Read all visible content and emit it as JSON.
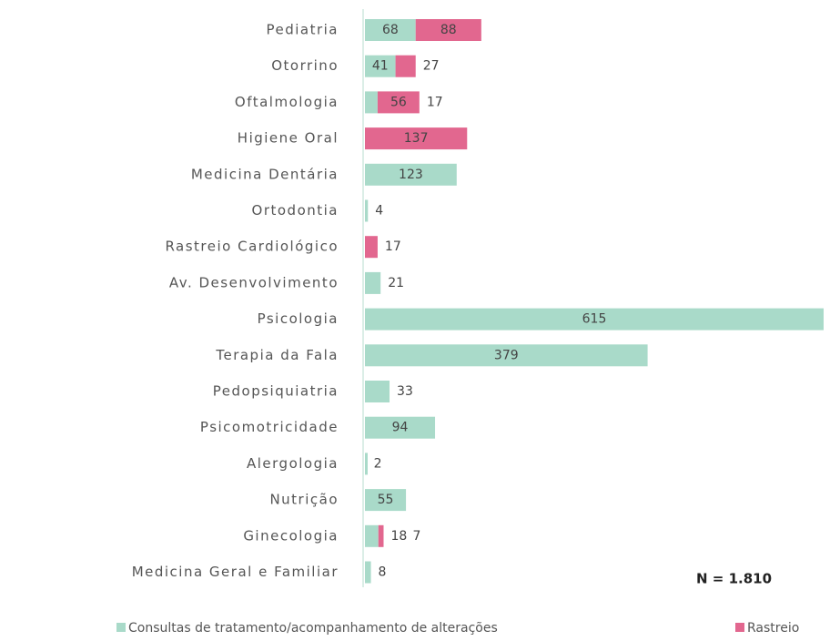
{
  "chart_data": {
    "type": "stacked_barh",
    "categories": [
      "Pediatria",
      "Otorrino",
      "Oftalmologia",
      "Higiene Oral",
      "Medicina Dentária",
      "Ortodontia",
      "Rastreio Cardiológico",
      "Av. Desenvolvimento",
      "Psicologia",
      "Terapia da Fala",
      "Pedopsiquiatria",
      "Psicomotricidade",
      "Alergologia",
      "Nutrição",
      "Ginecologia",
      "Medicina Geral e Familiar"
    ],
    "series": [
      {
        "name": "Consultas de tratamento/acompanhamento de alterações",
        "color": "#a9dac9",
        "values": [
          68,
          41,
          17,
          null,
          123,
          4,
          null,
          21,
          615,
          379,
          33,
          94,
          2,
          55,
          18,
          8
        ]
      },
      {
        "name": "Rastreio",
        "color": "#e2678f",
        "values": [
          88,
          27,
          56,
          137,
          null,
          null,
          17,
          null,
          null,
          null,
          null,
          null,
          null,
          null,
          7,
          null
        ]
      }
    ],
    "annotation": "N = 1.810"
  }
}
